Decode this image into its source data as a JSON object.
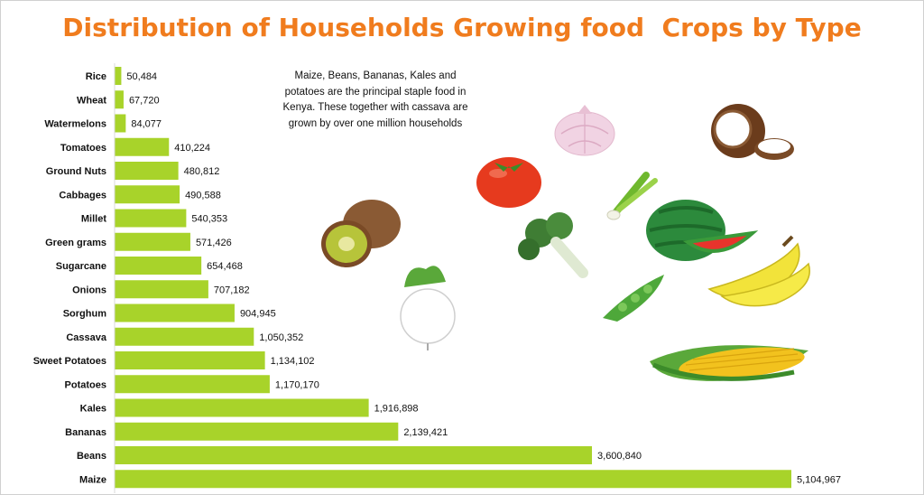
{
  "title": "Distribution of Households Growing food  Crops by Type",
  "note": "Maize, Beans, Bananas, Kales  and potatoes are the principal staple food in Kenya.  These together with cassava are grown by over one million households",
  "colors": {
    "bar": "#a8d32a",
    "title": "#f07c1e"
  },
  "icons": [
    "onion-icon",
    "coconut-icon",
    "tomato-icon",
    "kiwi-icon",
    "spring-onion-icon",
    "watermelon-icon",
    "broccoli-icon",
    "turnip-icon",
    "banana-icon",
    "peas-icon",
    "corn-icon"
  ],
  "chart_data": {
    "type": "bar",
    "orientation": "horizontal",
    "title": "Distribution of Households Growing food  Crops by Type",
    "categories": [
      "Rice",
      "Wheat",
      "Watermelons",
      "Tomatoes",
      "Ground Nuts",
      "Cabbages",
      "Millet",
      "Green grams",
      "Sugarcane",
      "Onions",
      "Sorghum",
      "Cassava",
      "Sweet Potatoes",
      "Potatoes",
      "Kales",
      "Bananas",
      "Beans",
      "Maize"
    ],
    "values": [
      50484,
      67720,
      84077,
      410224,
      480812,
      490588,
      540353,
      571426,
      654468,
      707182,
      904945,
      1050352,
      1134102,
      1170170,
      1916898,
      2139421,
      3600840,
      5104967
    ],
    "value_labels": [
      "50,484",
      "67,720",
      "84,077",
      "410,224",
      "480,812",
      "490,588",
      "540,353",
      "571,426",
      "654,468",
      "707,182",
      "904,945",
      "1,050,352",
      "1,134,102",
      "1,170,170",
      "1,916,898",
      "2,139,421",
      "3,600,840",
      "5,104,967"
    ],
    "xlabel": "",
    "ylabel": "",
    "grid": false,
    "legend": false
  }
}
